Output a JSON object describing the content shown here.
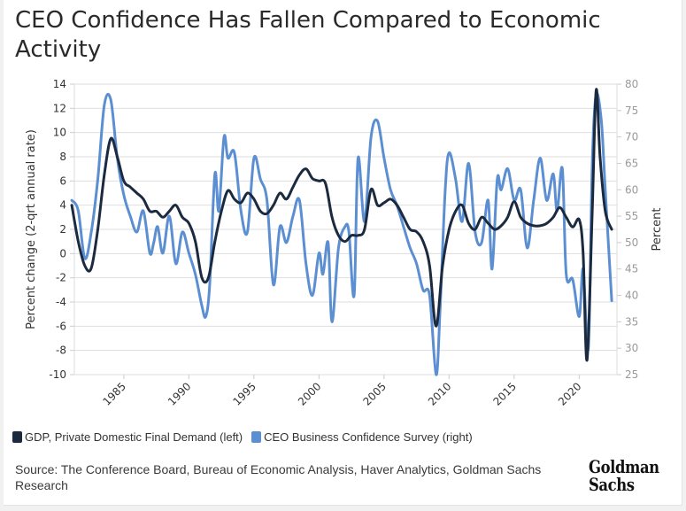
{
  "title": "CEO Confidence Has Fallen Compared to Economic Activity",
  "legend": [
    {
      "label": "GDP, Private Domestic Final Demand (left)",
      "color": "#1b2a3f"
    },
    {
      "label": "CEO Business Confidence Survey (right)",
      "color": "#5b8fd1"
    }
  ],
  "source": "Source: The Conference Board, Bureau of Economic Analysis, Haver Analytics, Goldman Sachs Research",
  "logo": {
    "line1": "Goldman",
    "line2": "Sachs"
  },
  "chart_data": {
    "type": "line",
    "title": "CEO Confidence Has Fallen Compared to Economic Activity",
    "xlabel": "",
    "ylabel": "Percent change (2-qrt annual rate)",
    "y2label": "Percent",
    "xlim": [
      1981,
      2022.7
    ],
    "ylim": [
      -10,
      14
    ],
    "y2lim": [
      25,
      80
    ],
    "xticks": [
      1985,
      1990,
      1995,
      2000,
      2005,
      2010,
      2015,
      2020
    ],
    "yticks": [
      -10,
      -8,
      -6,
      -4,
      -2,
      0,
      2,
      4,
      6,
      8,
      10,
      12,
      14
    ],
    "y2ticks": [
      25,
      30,
      35,
      40,
      45,
      50,
      55,
      60,
      65,
      70,
      75,
      80
    ],
    "grid": true,
    "legend_position": "bottom-left",
    "series": [
      {
        "name": "GDP, Private Domestic Final Demand (left)",
        "axis": "left",
        "color": "#1b2a3f",
        "x": [
          1981.0,
          1981.5,
          1982.0,
          1982.5,
          1983.0,
          1983.5,
          1984.0,
          1984.5,
          1985.0,
          1985.5,
          1986.0,
          1986.5,
          1987.0,
          1987.5,
          1988.0,
          1988.5,
          1989.0,
          1989.5,
          1990.0,
          1990.5,
          1991.0,
          1991.5,
          1992.0,
          1992.5,
          1993.0,
          1993.5,
          1994.0,
          1994.5,
          1995.0,
          1995.5,
          1996.0,
          1996.5,
          1997.0,
          1997.5,
          1998.0,
          1998.5,
          1999.0,
          1999.5,
          2000.0,
          2000.5,
          2001.0,
          2001.5,
          2002.0,
          2002.5,
          2003.0,
          2003.5,
          2004.0,
          2004.5,
          2005.0,
          2005.5,
          2006.0,
          2006.5,
          2007.0,
          2007.5,
          2008.0,
          2008.5,
          2009.0,
          2009.5,
          2010.0,
          2010.5,
          2011.0,
          2011.5,
          2012.0,
          2012.5,
          2013.0,
          2013.5,
          2014.0,
          2014.5,
          2015.0,
          2015.5,
          2016.0,
          2016.5,
          2017.0,
          2017.5,
          2018.0,
          2018.5,
          2019.0,
          2019.5,
          2020.0,
          2020.3,
          2020.6,
          2021.0,
          2021.3,
          2021.6,
          2022.0,
          2022.5
        ],
        "y": [
          4.0,
          1.0,
          -1.0,
          -1.2,
          2.0,
          6.5,
          9.5,
          8.0,
          6.0,
          5.5,
          5.0,
          4.5,
          3.5,
          3.5,
          3.0,
          3.5,
          4.0,
          3.0,
          2.5,
          1.0,
          -2.0,
          -2.0,
          1.0,
          3.5,
          5.2,
          4.5,
          4.2,
          5.0,
          4.5,
          3.5,
          3.3,
          4.0,
          5.0,
          4.5,
          5.5,
          6.5,
          7.0,
          6.2,
          6.0,
          5.8,
          3.0,
          1.5,
          1.0,
          1.5,
          1.5,
          2.0,
          5.3,
          4.0,
          4.2,
          4.5,
          4.0,
          3.0,
          2.0,
          1.8,
          1.0,
          -1.0,
          -6.0,
          -1.0,
          2.0,
          3.5,
          4.0,
          2.5,
          2.0,
          3.0,
          2.5,
          2.0,
          2.3,
          3.0,
          4.3,
          3.0,
          2.5,
          2.3,
          2.3,
          2.5,
          3.0,
          3.8,
          3.0,
          2.2,
          2.8,
          0.0,
          -8.8,
          3.5,
          13.5,
          8.0,
          3.5,
          2.0
        ]
      },
      {
        "name": "CEO Business Confidence Survey (right)",
        "axis": "right",
        "color": "#5b8fd1",
        "x": [
          1981.0,
          1981.5,
          1982.0,
          1982.5,
          1983.0,
          1983.5,
          1984.0,
          1984.5,
          1985.0,
          1985.5,
          1986.0,
          1986.5,
          1987.0,
          1987.3,
          1987.6,
          1988.0,
          1988.5,
          1989.0,
          1989.5,
          1990.0,
          1990.5,
          1991.0,
          1991.3,
          1991.6,
          1992.0,
          1992.3,
          1992.7,
          1993.0,
          1993.5,
          1994.0,
          1994.5,
          1995.0,
          1995.5,
          1996.0,
          1996.5,
          1997.0,
          1997.5,
          1998.0,
          1998.5,
          1999.0,
          1999.5,
          2000.0,
          2000.3,
          2000.7,
          2001.0,
          2001.5,
          2002.0,
          2002.3,
          2002.7,
          2003.0,
          2003.5,
          2004.0,
          2004.5,
          2005.0,
          2005.5,
          2006.0,
          2006.5,
          2007.0,
          2007.5,
          2008.0,
          2008.5,
          2009.0,
          2009.3,
          2009.7,
          2010.0,
          2010.5,
          2011.0,
          2011.5,
          2012.0,
          2012.5,
          2013.0,
          2013.3,
          2013.7,
          2014.0,
          2014.5,
          2015.0,
          2015.5,
          2016.0,
          2016.5,
          2017.0,
          2017.5,
          2018.0,
          2018.3,
          2018.7,
          2019.0,
          2019.5,
          2020.0,
          2020.3,
          2020.7,
          2021.0,
          2021.3,
          2021.7,
          2022.0,
          2022.5
        ],
        "y": [
          58,
          56,
          47,
          52,
          62,
          76,
          77,
          66,
          59,
          55,
          52,
          56,
          48,
          50,
          53,
          48,
          55,
          46,
          52,
          48,
          44,
          38,
          36,
          42,
          63,
          56,
          70,
          66,
          67,
          56,
          52,
          66,
          62,
          58,
          42,
          53,
          50,
          55,
          58,
          46,
          40,
          48,
          44,
          50,
          35,
          49,
          53,
          52,
          40,
          66,
          54,
          70,
          73,
          66,
          60,
          57,
          53,
          49,
          46,
          41,
          40,
          25,
          37,
          60,
          67,
          62,
          54,
          65,
          52,
          50,
          58,
          45,
          62,
          60,
          64,
          58,
          60,
          49,
          58,
          66,
          58,
          63,
          56,
          64,
          44,
          43,
          36,
          45,
          30,
          65,
          78,
          73,
          60,
          39
        ]
      }
    ]
  }
}
